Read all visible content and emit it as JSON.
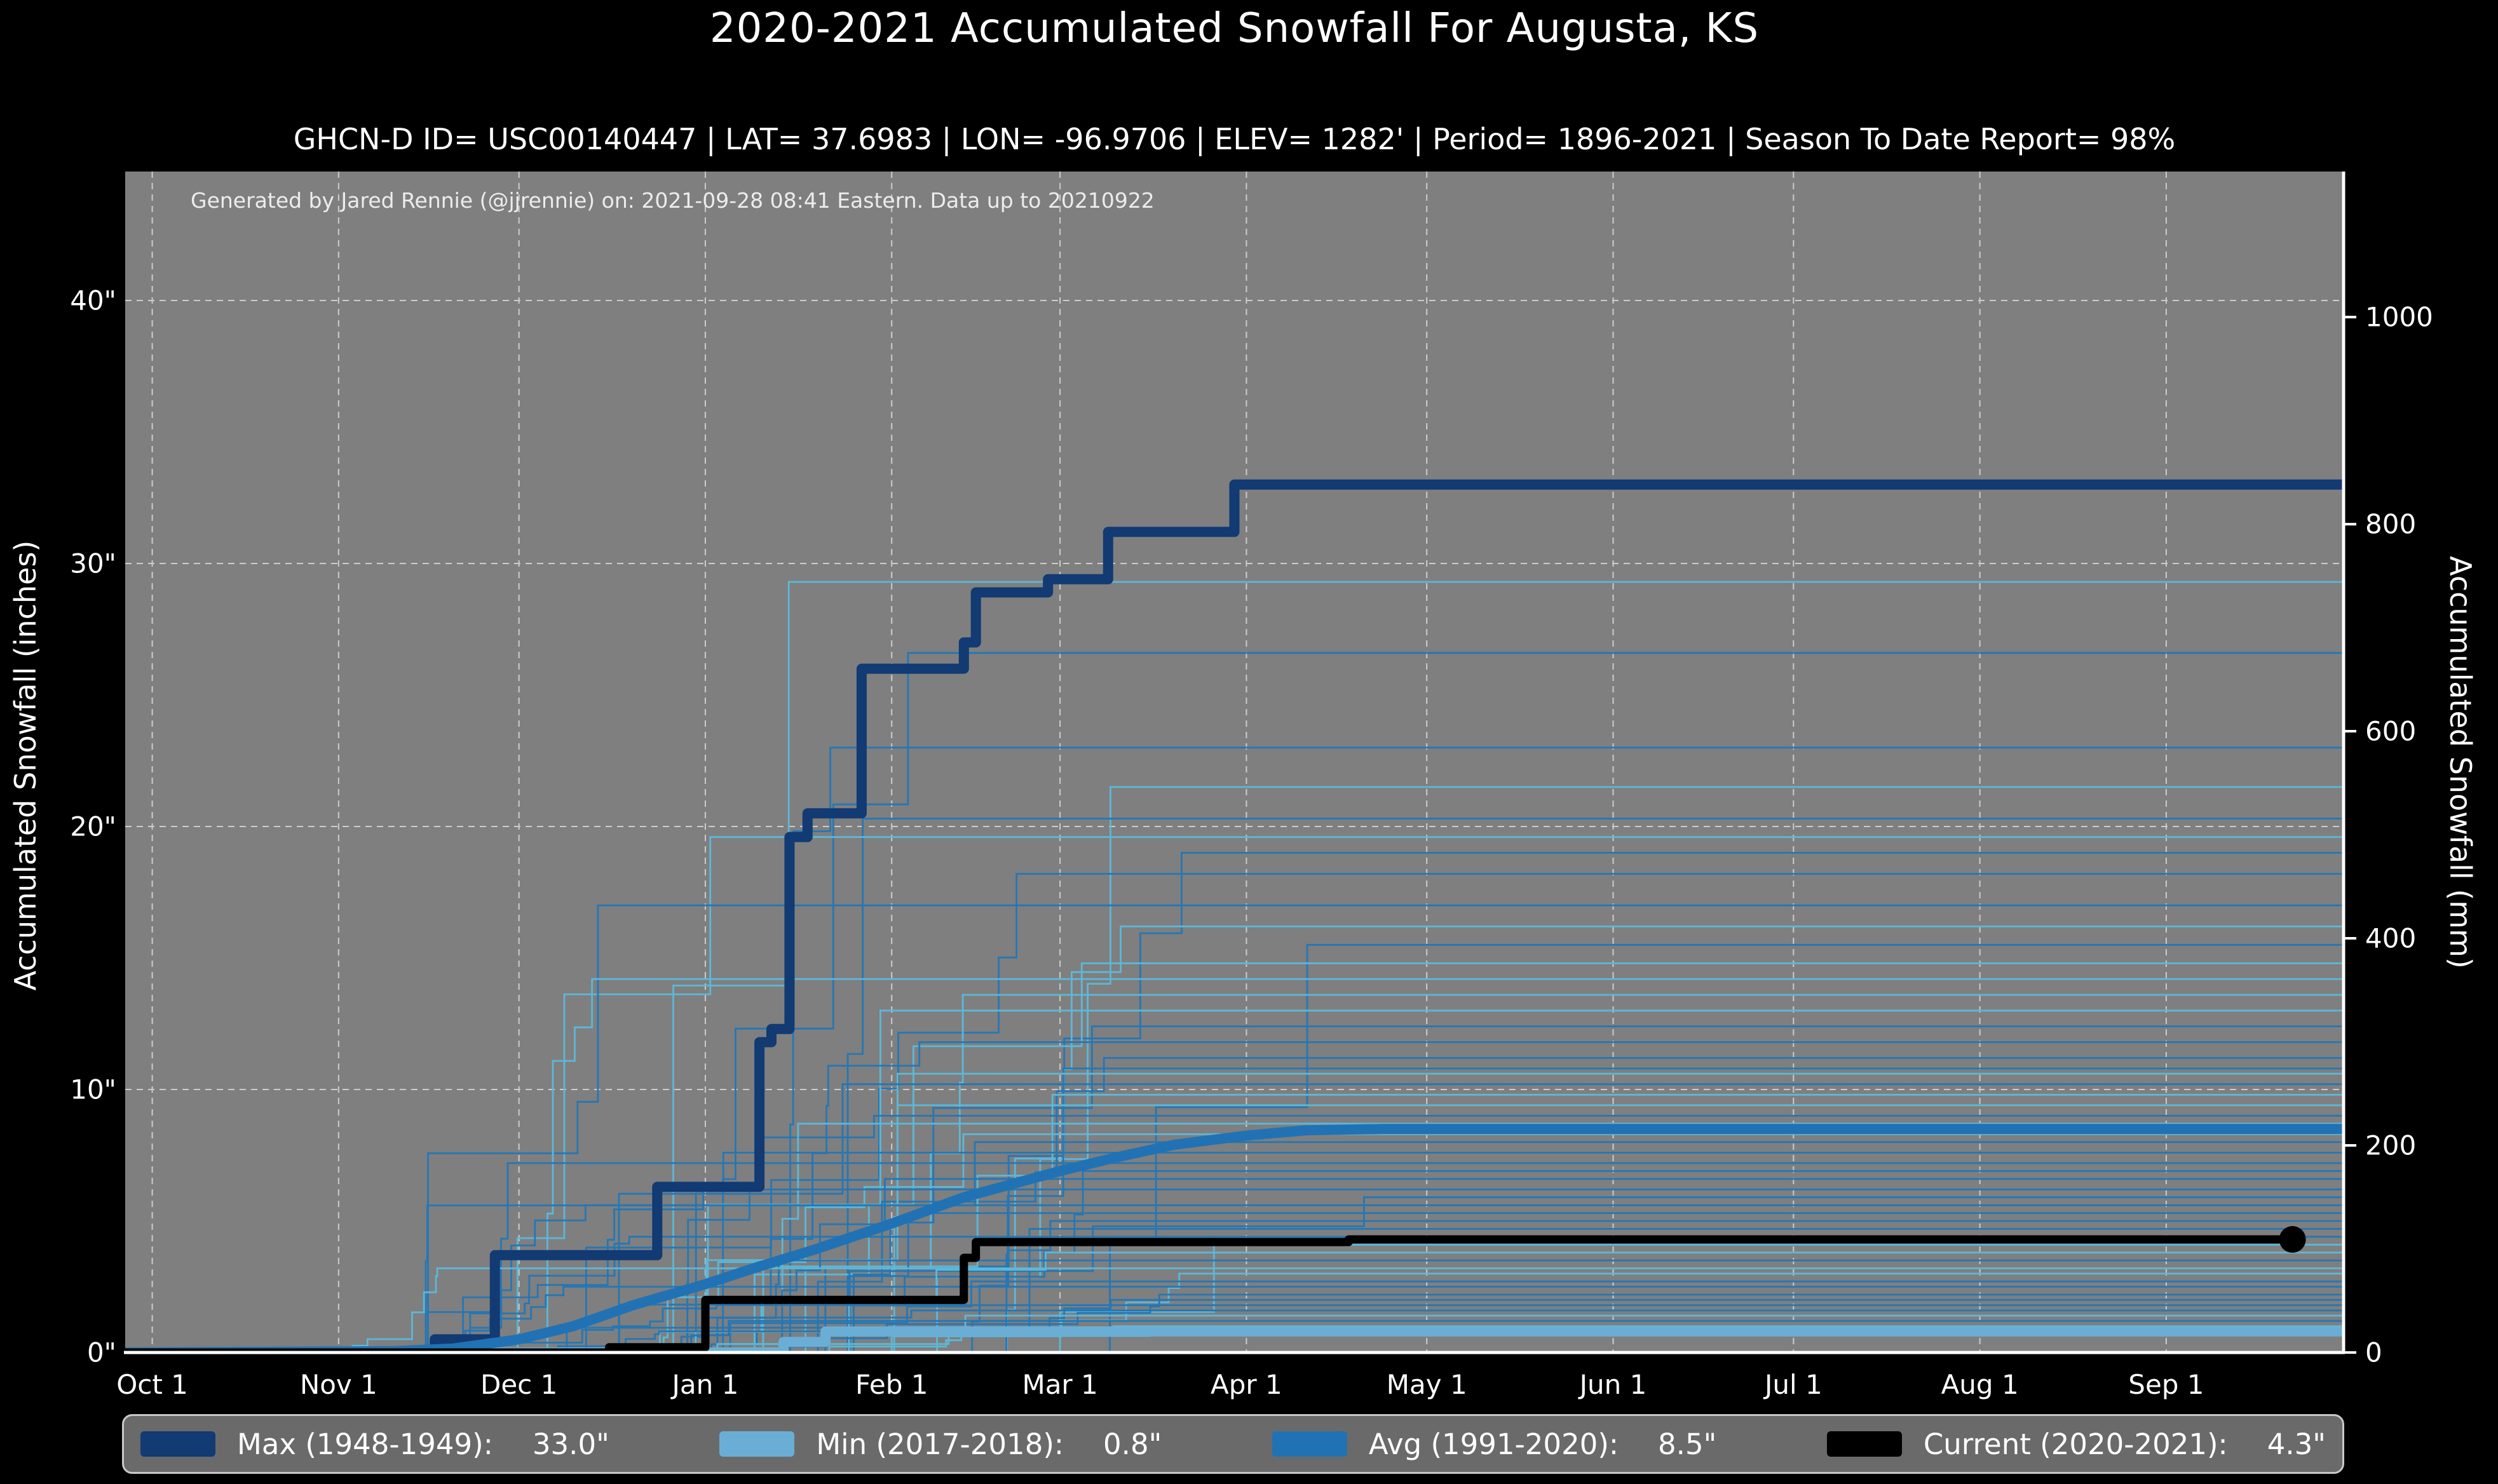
{
  "title": "2020-2021 Accumulated Snowfall For Augusta, KS",
  "subtitle": "GHCN-D ID= USC00140447 | LAT= 37.6983 | LON= -96.9706 | ELEV= 1282' | Period= 1896-2021 | Season To Date Report= 98%",
  "annotation": "Generated by Jared Rennie (@jjrennie) on: 2021-09-28 08:41 Eastern. Data up to 20210922",
  "legend": {
    "entries": [
      {
        "label": "Max (1948-1949):",
        "value": "33.0\"",
        "color": "#123a73"
      },
      {
        "label": "Min (2017-2018):",
        "value": "0.8\"",
        "color": "#6aaed6"
      },
      {
        "label": "Avg (1991-2020):",
        "value": "8.5\"",
        "color": "#2172b4"
      },
      {
        "label": "Current (2020-2021):",
        "value": "4.3\"",
        "color": "#000000"
      }
    ]
  },
  "chart_data": {
    "type": "line",
    "title": "2020-2021 Accumulated Snowfall For Augusta, KS",
    "subtitle": "GHCN-D ID= USC00140447 | LAT= 37.6983 | LON= -96.9706 | ELEV= 1282' | Period= 1896-2021 | Season To Date Report= 98%",
    "annotation": "Generated by Jared Rennie (@jjrennie) on: 2021-09-28 08:41 Eastern. Data up to 20210922",
    "plot_background": "#7f7f7f",
    "figure_background": "#000000",
    "grid": {
      "on": true,
      "style": "dashed",
      "color": "#e0e0e0"
    },
    "x_axis": {
      "unit": "days from Oct 1",
      "tick_labels": [
        "Oct 1",
        "Nov 1",
        "Dec 1",
        "Jan 1",
        "Feb 1",
        "Mar 1",
        "Apr 1",
        "May 1",
        "Jun 1",
        "Jul 1",
        "Aug 1",
        "Sep 1"
      ],
      "tick_days": [
        0,
        31,
        61,
        92,
        123,
        151,
        182,
        212,
        243,
        273,
        304,
        335
      ],
      "range_days": [
        -4.5,
        364.5
      ]
    },
    "y_axis_left": {
      "label": "Accumulated Snowfall (inches)",
      "tick_labels": [
        "0\"",
        "10\"",
        "20\"",
        "30\"",
        "40\""
      ],
      "tick_values": [
        0,
        10,
        20,
        30,
        40
      ],
      "range": [
        0,
        44.85
      ]
    },
    "y_axis_right": {
      "label": "Accumulated Snowfall (mm)",
      "tick_labels": [
        "0",
        "200",
        "400",
        "600",
        "800",
        "1000"
      ],
      "tick_values_mm": [
        0,
        200,
        400,
        600,
        800,
        1000
      ],
      "mm_per_inch": 25.4
    },
    "series": [
      {
        "name": "Max (1948-1949)",
        "total": 33.0,
        "color": "#123a73",
        "width": 16,
        "step": true,
        "points": [
          [
            -4.5,
            0
          ],
          [
            47,
            0
          ],
          [
            47,
            0.5
          ],
          [
            57,
            0.5
          ],
          [
            57,
            3.7
          ],
          [
            84,
            3.7
          ],
          [
            84,
            6.3
          ],
          [
            101,
            6.3
          ],
          [
            101,
            11.8
          ],
          [
            103,
            11.8
          ],
          [
            103,
            12.3
          ],
          [
            106,
            12.3
          ],
          [
            106,
            19.6
          ],
          [
            109,
            19.6
          ],
          [
            109,
            20.5
          ],
          [
            118,
            20.5
          ],
          [
            118,
            26.0
          ],
          [
            135,
            26.0
          ],
          [
            135,
            27.0
          ],
          [
            137,
            27.0
          ],
          [
            137,
            28.9
          ],
          [
            149,
            28.9
          ],
          [
            149,
            29.4
          ],
          [
            159,
            29.4
          ],
          [
            159,
            31.2
          ],
          [
            180,
            31.2
          ],
          [
            180,
            33.0
          ],
          [
            364.5,
            33.0
          ]
        ]
      },
      {
        "name": "Min (2017-2018)",
        "total": 0.8,
        "color": "#6aaed6",
        "width": 16,
        "step": true,
        "points": [
          [
            -4.5,
            0
          ],
          [
            105,
            0
          ],
          [
            105,
            0.4
          ],
          [
            112,
            0.4
          ],
          [
            112,
            0.8
          ],
          [
            364.5,
            0.8
          ]
        ]
      },
      {
        "name": "Avg (1991-2020)",
        "total": 8.5,
        "color": "#2172b4",
        "width": 16,
        "step": false,
        "points": [
          [
            -4.5,
            0
          ],
          [
            40,
            0.05
          ],
          [
            50,
            0.15
          ],
          [
            61,
            0.5
          ],
          [
            70,
            1.0
          ],
          [
            80,
            1.8
          ],
          [
            92,
            2.6
          ],
          [
            100,
            3.2
          ],
          [
            110,
            3.9
          ],
          [
            123,
            4.9
          ],
          [
            135,
            5.9
          ],
          [
            151,
            6.9
          ],
          [
            160,
            7.4
          ],
          [
            170,
            7.9
          ],
          [
            182,
            8.25
          ],
          [
            192,
            8.45
          ],
          [
            205,
            8.5
          ],
          [
            364.5,
            8.5
          ]
        ]
      },
      {
        "name": "Current (2020-2021)",
        "total": 4.3,
        "color": "#000000",
        "width": 13,
        "step": true,
        "points": [
          [
            -4.5,
            0
          ],
          [
            76,
            0
          ],
          [
            76,
            0.2
          ],
          [
            92,
            0.2
          ],
          [
            92,
            2.0
          ],
          [
            135,
            2.0
          ],
          [
            135,
            3.6
          ],
          [
            137,
            3.6
          ],
          [
            137,
            4.2
          ],
          [
            199,
            4.2
          ],
          [
            199,
            4.3
          ],
          [
            356,
            4.3
          ]
        ],
        "end_marker": {
          "day": 356,
          "value": 4.3,
          "radius": 21
        }
      }
    ],
    "historical_years": {
      "description": "Thin step lines: one per season 1896-2021 (approximated); season totals estimated from right-edge positions",
      "color_light": "#5cb8d8",
      "color_medium": "#2577b5",
      "line_width": 2.8,
      "seed": 7,
      "totals": [
        29.3,
        26.6,
        23.0,
        21.5,
        20.3,
        19.6,
        19.0,
        18.2,
        17.0,
        16.2,
        15.5,
        14.8,
        14.2,
        13.6,
        13.0,
        12.4,
        11.8,
        11.2,
        10.8,
        10.6,
        10.2,
        9.8,
        9.4,
        9.0,
        8.7,
        8.3,
        8.0,
        7.6,
        7.2,
        6.9,
        6.6,
        6.2,
        5.9,
        5.6,
        5.3,
        5.0,
        4.7,
        4.4,
        4.1,
        3.8,
        3.5,
        3.2,
        3.0,
        2.7,
        2.5,
        2.2,
        2.0,
        1.8,
        1.6,
        1.4,
        1.2,
        1.0,
        0.9,
        0.8
      ]
    }
  }
}
